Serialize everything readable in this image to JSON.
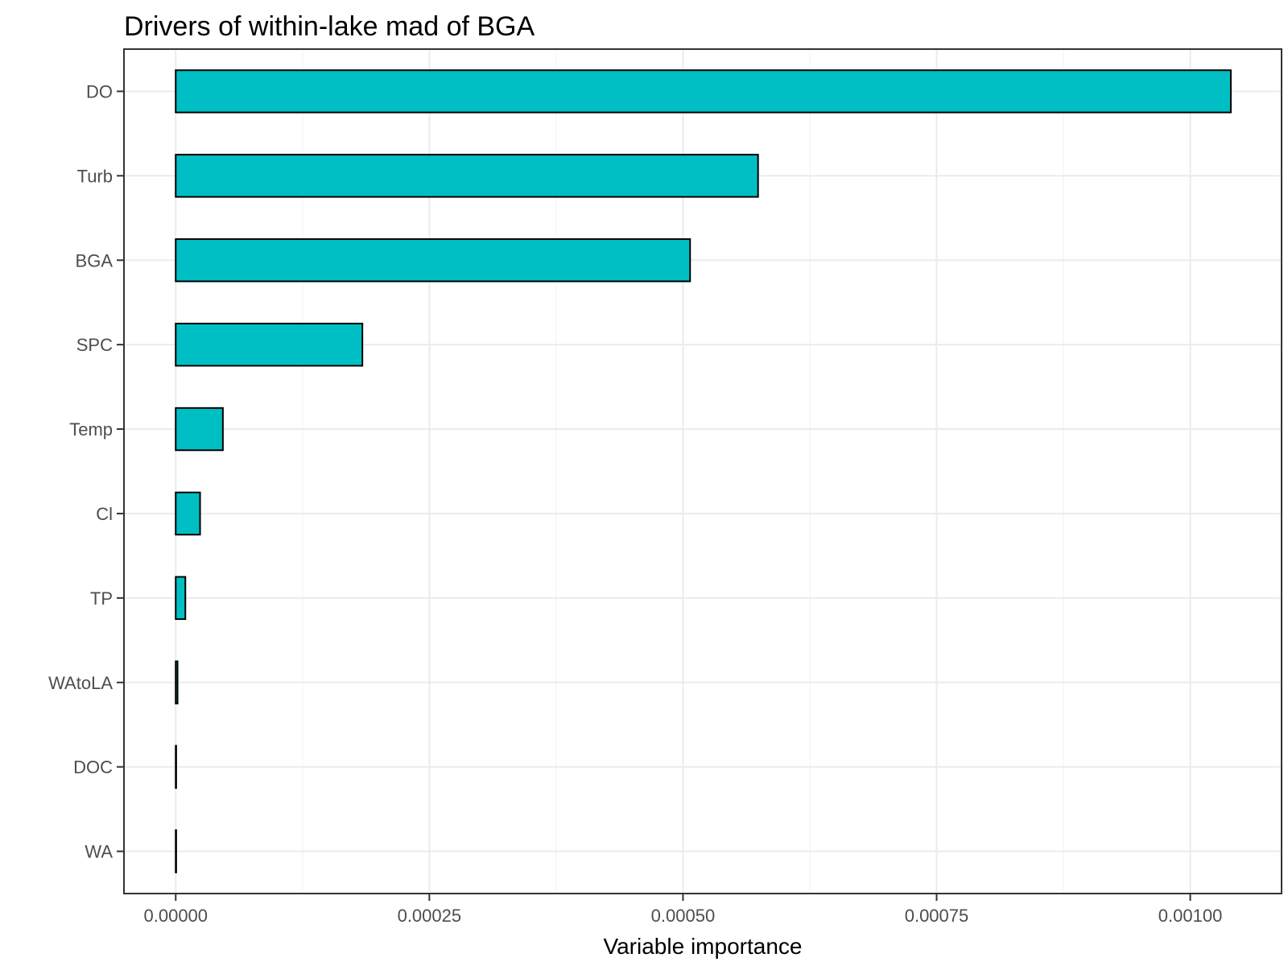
{
  "chart_data": {
    "type": "bar",
    "orientation": "horizontal",
    "title": "Drivers of within-lake mad of BGA",
    "xlabel": "Variable importance",
    "ylabel": "",
    "categories": [
      "DO",
      "Turb",
      "BGA",
      "SPC",
      "Temp",
      "Cl",
      "TP",
      "WAtoLA",
      "DOC",
      "WA"
    ],
    "values": [
      0.00104,
      0.000574,
      0.000507,
      0.000184,
      4.65e-05,
      2.4e-05,
      9.5e-06,
      1.8e-06,
      3e-07,
      2e-07
    ],
    "xlim": [
      -5.1e-05,
      0.00109
    ],
    "xticks": [
      0,
      0.00025,
      0.0005,
      0.00075,
      0.001
    ],
    "xtick_labels": [
      "0.00000",
      "0.00025",
      "0.00050",
      "0.00075",
      "0.00100"
    ],
    "grid": true,
    "legend": "none",
    "bar_fill": "#00BFC4",
    "bar_stroke": "#000000"
  }
}
